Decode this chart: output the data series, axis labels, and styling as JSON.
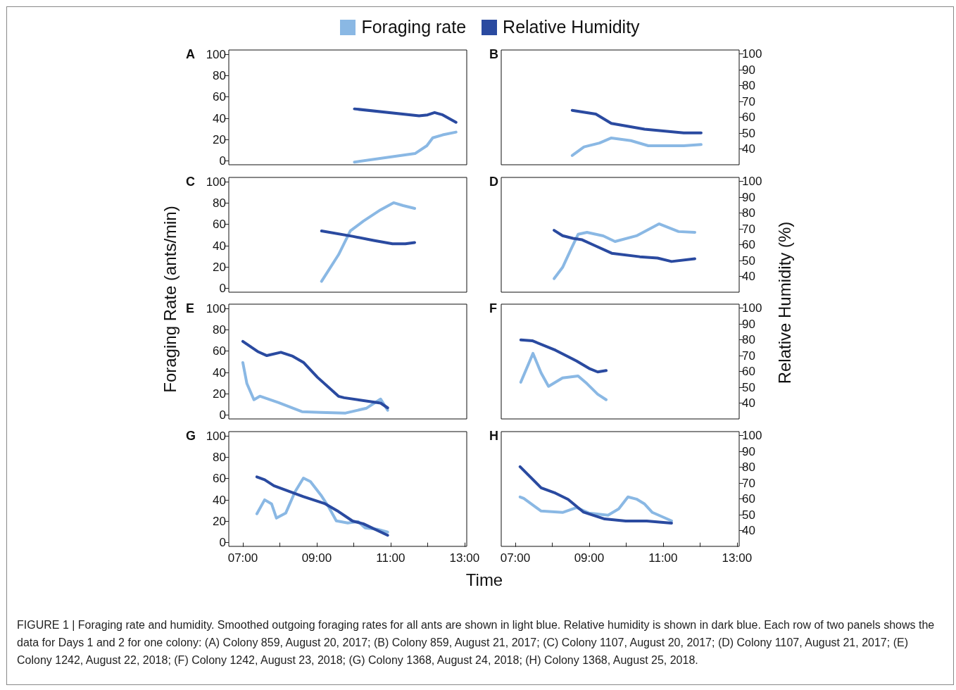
{
  "chart_data": [
    {
      "type": "line",
      "title": "A",
      "legend": "top",
      "annotations": [
        "FIGURE 1 | Foraging rate and humidity. Smoothed outgoing foraging rates for all ants are shown in light blue. Relative humidity is shown in dark blue. Each row of two panels shows the data for Days 1 and 2 for one colony: (A) Colony 859, August 20, 2017; (B) Colony 859, August 21, 2017; (C) Colony 1107, August 20, 2017; (D) Colony 1107, August 21, 2017; (E) Colony 1242, August 22, 2018; (F) Colony 1242, August 23, 2018; (G) Colony 1368, August 24, 2018; (H) Colony 1368, August 25, 2018."
      ],
      "xlim": [
        6.62,
        13.06
      ],
      "ylim": [
        -3.5,
        104
      ],
      "yticks": [
        0,
        20,
        40,
        60,
        80,
        100
      ],
      "y2lim": [
        30,
        102.5
      ],
      "tick_labels": [
        "y"
      ],
      "series": [
        {
          "name": "Foraging rate",
          "color": "#8ab8e4",
          "x": [
            10.02,
            11.66,
            11.98,
            12.14,
            12.41,
            12.77
          ],
          "values": [
            -1,
            7,
            14.3,
            21.7,
            24.5,
            27.1
          ]
        },
        {
          "name": "Relative Humidity",
          "color": "#2a4aa0",
          "axis": "y2",
          "x": [
            10.02,
            11.77,
            12.0,
            12.19,
            12.41,
            12.77
          ],
          "values": [
            65.3,
            60.9,
            61.5,
            63.0,
            61.5,
            56.8
          ]
        }
      ]
    },
    {
      "type": "line",
      "title": "B",
      "xlim": [
        6.62,
        13.06
      ],
      "ylim": [
        -3.5,
        104
      ],
      "y2lim": [
        30,
        102.5
      ],
      "y2ticks": [
        40,
        50,
        60,
        70,
        80,
        90,
        100
      ],
      "tick_labels": [
        "y2"
      ],
      "series": [
        {
          "color": "#8ab8e4",
          "x": [
            8.54,
            8.86,
            9.28,
            9.6,
            10.13,
            10.6,
            11.56,
            12.03
          ],
          "values": [
            5.2,
            13.2,
            16.9,
            21.6,
            19.1,
            14.3,
            14.3,
            15.4
          ]
        },
        {
          "color": "#2a4aa0",
          "axis": "y2",
          "x": [
            8.54,
            9.18,
            9.6,
            10.5,
            11.56,
            12.03
          ],
          "values": [
            64.4,
            62.0,
            56.1,
            52.5,
            50.1,
            50.1
          ]
        }
      ]
    },
    {
      "type": "line",
      "title": "C",
      "ylabel": "Foraging Rate (ants/min)",
      "xlim": [
        6.62,
        13.06
      ],
      "ylim": [
        -3.5,
        104
      ],
      "yticks": [
        0,
        20,
        40,
        60,
        80,
        100
      ],
      "y2lim": [
        30,
        102.5
      ],
      "tick_labels": [
        "y"
      ],
      "series": [
        {
          "color": "#8ab8e4",
          "x": [
            9.13,
            9.59,
            9.91,
            10.26,
            10.73,
            11.08,
            11.34,
            11.65
          ],
          "values": [
            6.6,
            31.6,
            53.9,
            63,
            73.7,
            80.3,
            77.6,
            75
          ]
        },
        {
          "color": "#2a4aa0",
          "axis": "y2",
          "x": [
            9.13,
            9.97,
            10.54,
            11.05,
            11.4,
            11.65
          ],
          "values": [
            68.7,
            65.3,
            62.7,
            60.6,
            60.6,
            61.4
          ]
        }
      ]
    },
    {
      "type": "line",
      "title": "D",
      "y2label": "Relative Humidity (%)",
      "xlim": [
        6.62,
        13.06
      ],
      "ylim": [
        -3.5,
        104
      ],
      "y2lim": [
        30,
        102.5
      ],
      "y2ticks": [
        40,
        50,
        60,
        70,
        80,
        90,
        100
      ],
      "tick_labels": [
        "y2"
      ],
      "series": [
        {
          "color": "#8ab8e4",
          "x": [
            8.05,
            8.28,
            8.5,
            8.7,
            8.94,
            9.38,
            9.7,
            10.28,
            10.89,
            11.42,
            11.86
          ],
          "values": [
            9.2,
            19.7,
            36.2,
            50.7,
            52.6,
            49.3,
            44,
            49.3,
            60.5,
            53.3,
            52.6
          ]
        },
        {
          "color": "#2a4aa0",
          "axis": "y2",
          "x": [
            8.05,
            8.28,
            8.56,
            8.81,
            9.13,
            9.61,
            10.37,
            10.85,
            11.23,
            11.86
          ],
          "values": [
            69.1,
            65.7,
            64.0,
            63.1,
            59.7,
            54.6,
            52.4,
            51.6,
            49.4,
            51.1
          ]
        }
      ]
    },
    {
      "type": "line",
      "title": "E",
      "xlim": [
        6.62,
        13.06
      ],
      "ylim": [
        -3.5,
        104
      ],
      "yticks": [
        0,
        20,
        40,
        60,
        80,
        100
      ],
      "y2lim": [
        30,
        102.5
      ],
      "tick_labels": [
        "y"
      ],
      "series": [
        {
          "color": "#8ab8e4",
          "x": [
            7.0,
            7.11,
            7.3,
            7.46,
            7.97,
            8.6,
            9.11,
            9.78,
            10.35,
            10.73,
            10.92
          ],
          "values": [
            49.3,
            29.6,
            14.5,
            17.8,
            11.8,
            3.3,
            2.6,
            2,
            6.6,
            15.1,
            4.6
          ]
        },
        {
          "color": "#2a4aa0",
          "axis": "y2",
          "x": [
            7.0,
            7.4,
            7.65,
            8.03,
            8.35,
            8.64,
            9.02,
            9.59,
            9.74,
            10.73,
            10.92
          ],
          "values": [
            79,
            72.6,
            70,
            72.1,
            69.6,
            65.7,
            56.3,
            44.3,
            43.4,
            40,
            37
          ]
        }
      ]
    },
    {
      "type": "line",
      "title": "F",
      "xlim": [
        6.62,
        13.06
      ],
      "ylim": [
        -3.5,
        104
      ],
      "y2lim": [
        30,
        102.5
      ],
      "y2ticks": [
        40,
        50,
        60,
        70,
        80,
        90,
        100
      ],
      "tick_labels": [
        "y2"
      ],
      "series": [
        {
          "color": "#8ab8e4",
          "x": [
            7.15,
            7.48,
            7.7,
            7.9,
            8.09,
            8.28,
            8.7,
            8.94,
            9.23,
            9.46
          ],
          "values": [
            30.9,
            57.9,
            39.5,
            27,
            30.9,
            34.9,
            36.8,
            29.6,
            19.7,
            14.5
          ]
        },
        {
          "color": "#2a4aa0",
          "axis": "y2",
          "x": [
            7.15,
            7.46,
            8.09,
            8.66,
            9.0,
            9.23,
            9.46
          ],
          "values": [
            79.9,
            79.4,
            73.4,
            66.6,
            61.9,
            59.7,
            60.6
          ]
        }
      ]
    },
    {
      "type": "line",
      "title": "G",
      "xlabel": "Time",
      "xlim": [
        6.62,
        13.06
      ],
      "xticks": [
        {
          "value": 7,
          "label": "07:00"
        },
        {
          "value": 8,
          "label": null
        },
        {
          "value": 9,
          "label": "09:00"
        },
        {
          "value": 10,
          "label": null
        },
        {
          "value": 11,
          "label": "11:00"
        },
        {
          "value": 12,
          "label": null
        },
        {
          "value": 13,
          "label": "13:00"
        }
      ],
      "ylim": [
        -3.5,
        104
      ],
      "yticks": [
        0,
        20,
        40,
        60,
        80,
        100
      ],
      "y2lim": [
        30,
        102.5
      ],
      "tick_labels": [
        "x",
        "y"
      ],
      "series": [
        {
          "color": "#8ab8e4",
          "x": [
            7.38,
            7.59,
            7.78,
            7.91,
            8.16,
            8.41,
            8.64,
            8.83,
            9.11,
            9.32,
            9.53,
            9.84,
            10.12,
            10.31,
            10.64,
            10.92
          ],
          "values": [
            27,
            40.1,
            36.2,
            23,
            27.6,
            47.4,
            60.5,
            57.2,
            44.7,
            33.6,
            20.4,
            18.4,
            19.7,
            13.8,
            12.5,
            9.9
          ]
        },
        {
          "color": "#2a4aa0",
          "axis": "y2",
          "x": [
            7.38,
            7.59,
            7.84,
            8.64,
            9.21,
            9.59,
            9.97,
            10.26,
            10.92
          ],
          "values": [
            73.9,
            72.1,
            68.3,
            61.4,
            57.1,
            52,
            46,
            44.3,
            37
          ]
        }
      ]
    },
    {
      "type": "line",
      "title": "H",
      "xlim": [
        6.62,
        13.06
      ],
      "xticks": [
        {
          "value": 7,
          "label": "07:00"
        },
        {
          "value": 8,
          "label": null
        },
        {
          "value": 9,
          "label": "09:00"
        },
        {
          "value": 10,
          "label": null
        },
        {
          "value": 11,
          "label": "11:00"
        },
        {
          "value": 12,
          "label": null
        },
        {
          "value": 13,
          "label": "13:00"
        }
      ],
      "ylim": [
        -3.5,
        104
      ],
      "y2lim": [
        30,
        102.5
      ],
      "y2ticks": [
        40,
        50,
        60,
        70,
        80,
        90,
        100
      ],
      "tick_labels": [
        "x",
        "y2"
      ],
      "series": [
        {
          "color": "#8ab8e4",
          "x": [
            7.13,
            7.23,
            7.7,
            8.28,
            8.66,
            9.0,
            9.51,
            9.8,
            10.05,
            10.28,
            10.5,
            10.71,
            11.23
          ],
          "values": [
            42.8,
            41.4,
            29.6,
            28.3,
            32.9,
            27.6,
            25.7,
            31.6,
            42.8,
            40.8,
            36.2,
            28.3,
            20.4
          ]
        },
        {
          "color": "#2a4aa0",
          "axis": "y2",
          "x": [
            7.13,
            7.7,
            8.09,
            8.43,
            8.85,
            9.42,
            9.99,
            10.56,
            11.23
          ],
          "values": [
            80.3,
            67,
            63.6,
            59.7,
            51.6,
            47.3,
            46,
            46,
            44.7
          ]
        }
      ]
    }
  ]
}
